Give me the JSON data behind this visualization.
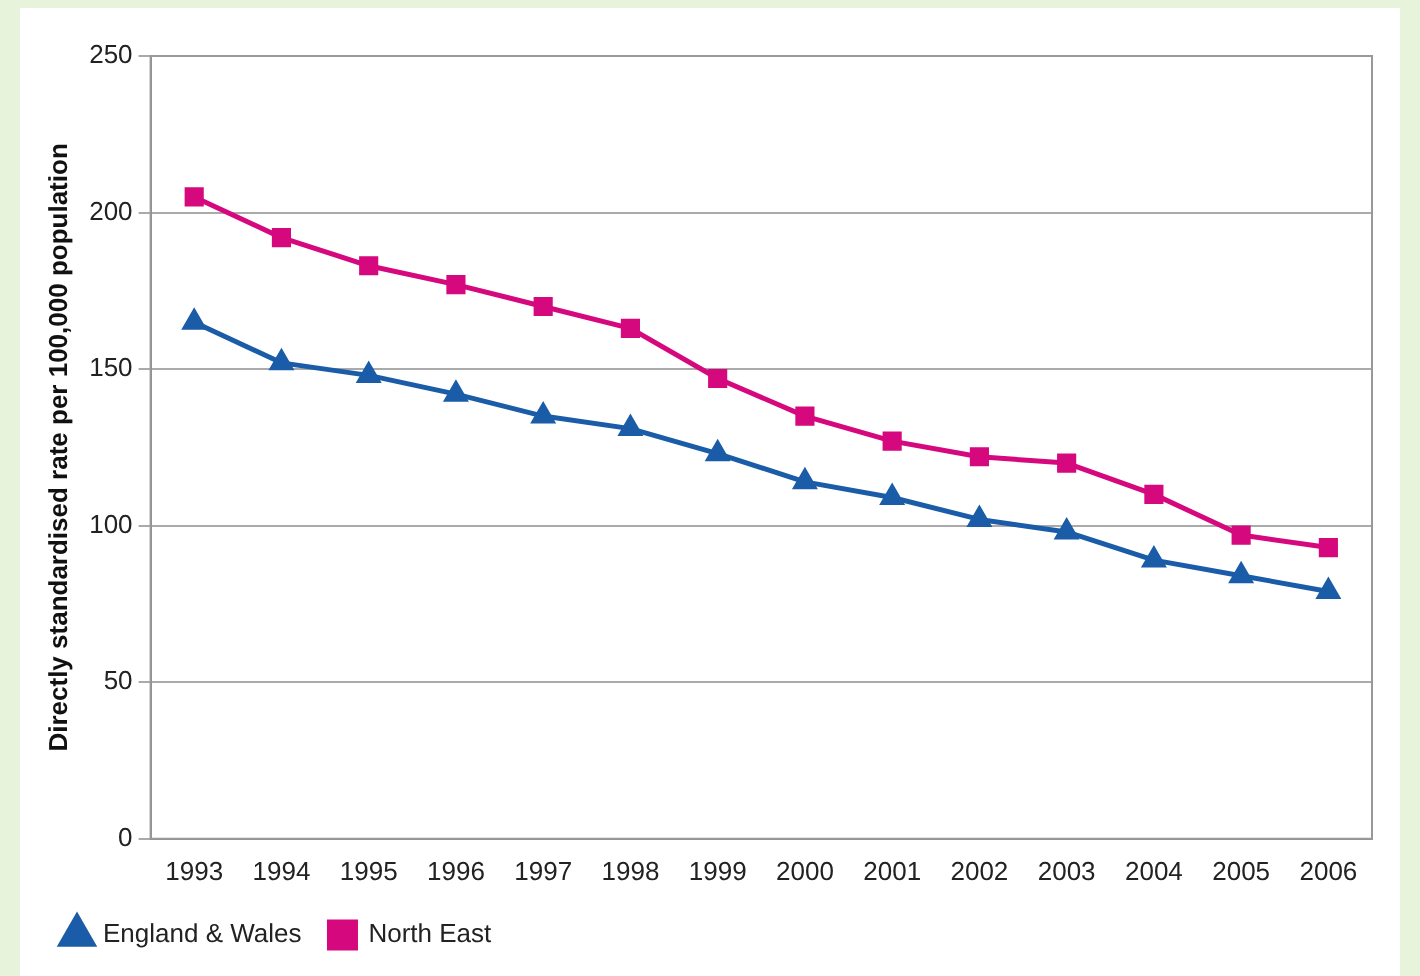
{
  "chart_data": {
    "type": "line",
    "ylabel": "Directly standardised rate per 100,000 population",
    "categories": [
      "1993",
      "1994",
      "1995",
      "1996",
      "1997",
      "1998",
      "1999",
      "2000",
      "2001",
      "2002",
      "2003",
      "2004",
      "2005",
      "2006"
    ],
    "series": [
      {
        "name": "England & Wales",
        "color": "#1a5ca8",
        "marker": "triangle",
        "values": [
          165,
          152,
          148,
          142,
          135,
          131,
          123,
          114,
          109,
          102,
          98,
          89,
          84,
          79
        ]
      },
      {
        "name": "North East",
        "color": "#d6087e",
        "marker": "square",
        "values": [
          205,
          192,
          183,
          177,
          170,
          163,
          147,
          135,
          127,
          122,
          120,
          110,
          97,
          93
        ]
      }
    ],
    "ylim": [
      0,
      250
    ],
    "yticks": [
      0,
      50,
      100,
      150,
      200,
      250
    ],
    "grid": "y",
    "legend": "bottom",
    "line_style": "solid"
  }
}
